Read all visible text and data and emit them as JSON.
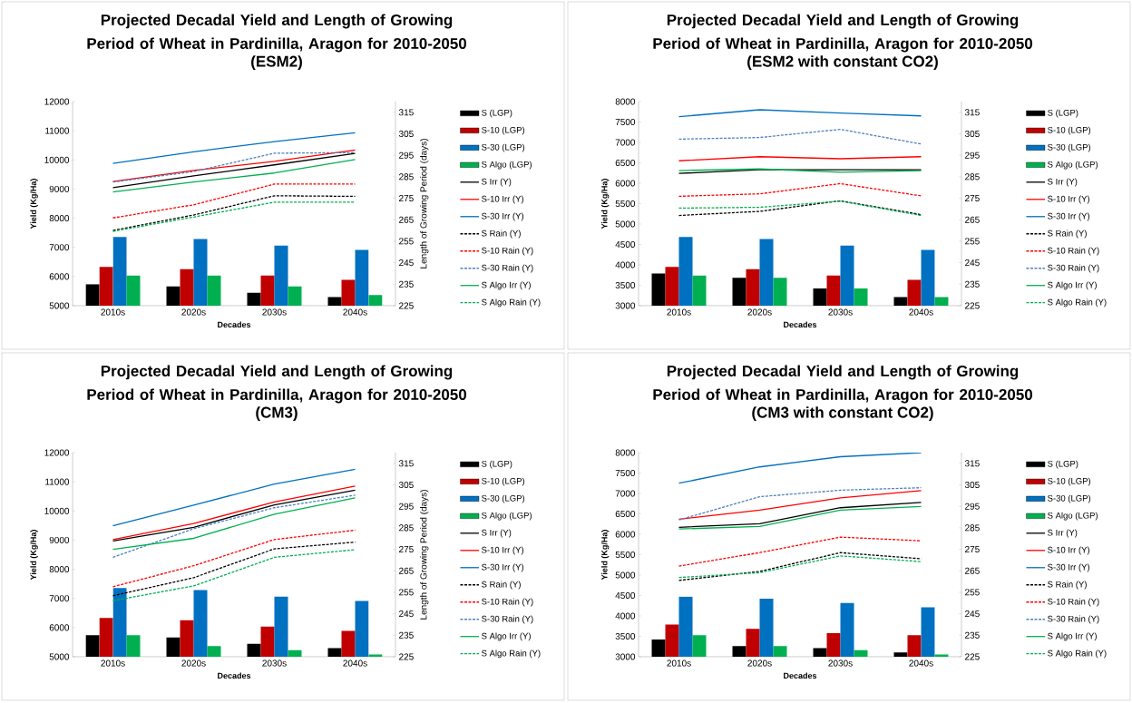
{
  "chart_data": [
    {
      "type": "bar",
      "title": "Projected Decadal Yield and Length of Growing Period of Wheat in Pardinilla, Aragon for 2010-2050",
      "subtitle": "(ESM2)",
      "xlabel": "Decades",
      "ylabel": "Yield (Kg/Ha)",
      "y2label": "Length of Growing Period  (days)",
      "categories": [
        "2010s",
        "2020s",
        "2030s",
        "2040s"
      ],
      "ylim": [
        5000,
        12000
      ],
      "yticks": [
        5000,
        6000,
        7000,
        8000,
        9000,
        10000,
        11000,
        12000
      ],
      "y2lim": [
        225,
        320
      ],
      "y2ticks": [
        225,
        235,
        245,
        255,
        265,
        275,
        285,
        295,
        305,
        315
      ],
      "legend": "right",
      "series": [
        {
          "name": "S (LGP)",
          "type": "bar",
          "axis": "y2",
          "color": "#000000",
          "values": [
            235,
            234,
            231,
            229
          ]
        },
        {
          "name": "S-10 (LGP)",
          "type": "bar",
          "axis": "y2",
          "color": "#c00000",
          "values": [
            243,
            242,
            239,
            237
          ]
        },
        {
          "name": "S-30 (LGP)",
          "type": "bar",
          "axis": "y2",
          "color": "#0070c0",
          "values": [
            257,
            256,
            253,
            251
          ]
        },
        {
          "name": "S Algo (LGP)",
          "type": "bar",
          "axis": "y2",
          "color": "#00b050",
          "values": [
            239,
            239,
            234,
            230
          ]
        },
        {
          "name": "S Irr (Y)",
          "type": "line",
          "color": "#000000",
          "line_style": "solid",
          "values": [
            9050,
            9450,
            9830,
            10220
          ]
        },
        {
          "name": "S-10 Irr (Y)",
          "type": "line",
          "color": "#ff0000",
          "line_style": "solid",
          "values": [
            9260,
            9640,
            9950,
            10340
          ]
        },
        {
          "name": "S-30 Irr (Y)",
          "type": "line",
          "color": "#0070c0",
          "line_style": "solid",
          "values": [
            9880,
            10280,
            10630,
            10930
          ]
        },
        {
          "name": "S Rain (Y)",
          "type": "line",
          "color": "#000000",
          "line_style": "dashed",
          "values": [
            7580,
            8110,
            8770,
            8750
          ]
        },
        {
          "name": "S-10 Rain (Y)",
          "type": "line",
          "color": "#ff0000",
          "line_style": "dashed",
          "values": [
            8010,
            8460,
            9170,
            9170
          ]
        },
        {
          "name": "S-30 Rain (Y)",
          "type": "line",
          "color": "#4f81bd",
          "line_style": "dashed",
          "values": [
            9240,
            9600,
            10230,
            10250
          ]
        },
        {
          "name": "S Algo Irr (Y)",
          "type": "line",
          "color": "#00b050",
          "line_style": "solid",
          "values": [
            8900,
            9240,
            9550,
            10010
          ]
        },
        {
          "name": "S Algo Rain (Y)",
          "type": "line",
          "color": "#00b050",
          "line_style": "dashed",
          "values": [
            7550,
            8040,
            8550,
            8550
          ]
        }
      ]
    },
    {
      "type": "bar",
      "title": "Projected Decadal Yield and Length of Growing Period of Wheat in Pardinilla, Aragon for 2010-2050",
      "subtitle": "(ESM2 with constant CO2)",
      "xlabel": "Decades",
      "ylabel": "Yield (Kg/Ha)",
      "categories": [
        "2010s",
        "2020s",
        "2030s",
        "2040s"
      ],
      "ylim": [
        3000,
        8000
      ],
      "yticks": [
        3000,
        3500,
        4000,
        4500,
        5000,
        5500,
        6000,
        6500,
        7000,
        7500,
        8000
      ],
      "y2lim": [
        225,
        320
      ],
      "y2ticks": [
        225,
        235,
        245,
        255,
        265,
        275,
        285,
        295,
        305,
        315
      ],
      "legend": "right",
      "series": [
        {
          "name": "S (LGP)",
          "type": "bar",
          "axis": "y2",
          "color": "#000000",
          "values": [
            240,
            238,
            233,
            229
          ]
        },
        {
          "name": "S-10 (LGP)",
          "type": "bar",
          "axis": "y2",
          "color": "#c00000",
          "values": [
            243,
            242,
            239,
            237
          ]
        },
        {
          "name": "S-30 (LGP)",
          "type": "bar",
          "axis": "y2",
          "color": "#0070c0",
          "values": [
            257,
            256,
            253,
            251
          ]
        },
        {
          "name": "S Algo (LGP)",
          "type": "bar",
          "axis": "y2",
          "color": "#00b050",
          "values": [
            239,
            238,
            233,
            229
          ]
        },
        {
          "name": "S Irr (Y)",
          "type": "line",
          "color": "#000000",
          "line_style": "solid",
          "values": [
            6240,
            6330,
            6330,
            6330
          ]
        },
        {
          "name": "S-10 Irr (Y)",
          "type": "line",
          "color": "#ff0000",
          "line_style": "solid",
          "values": [
            6550,
            6650,
            6600,
            6650
          ]
        },
        {
          "name": "S-30 Irr (Y)",
          "type": "line",
          "color": "#0070c0",
          "line_style": "solid",
          "values": [
            7630,
            7800,
            7720,
            7650
          ]
        },
        {
          "name": "S Rain (Y)",
          "type": "line",
          "color": "#000000",
          "line_style": "dashed",
          "values": [
            5210,
            5310,
            5570,
            5230
          ]
        },
        {
          "name": "S-10 Rain (Y)",
          "type": "line",
          "color": "#ff0000",
          "line_style": "dashed",
          "values": [
            5680,
            5740,
            5990,
            5690
          ]
        },
        {
          "name": "S-30 Rain (Y)",
          "type": "line",
          "color": "#4f81bd",
          "line_style": "dashed",
          "values": [
            7080,
            7120,
            7320,
            6960
          ]
        },
        {
          "name": "S Algo Irr (Y)",
          "type": "line",
          "color": "#00b050",
          "line_style": "solid",
          "values": [
            6310,
            6350,
            6270,
            6310
          ]
        },
        {
          "name": "S Algo Rain (Y)",
          "type": "line",
          "color": "#00b050",
          "line_style": "dashed",
          "values": [
            5390,
            5410,
            5560,
            5210
          ]
        }
      ]
    },
    {
      "type": "bar",
      "title": "Projected Decadal Yield and Length of Growing Period of Wheat in Pardinilla, Aragon for 2010-2050",
      "subtitle": "(CM3)",
      "xlabel": "Decades",
      "ylabel": "Yield (Kg/Ha)",
      "y2label": "Length of Growing Period  (days)",
      "categories": [
        "2010s",
        "2020s",
        "2030s",
        "2040s"
      ],
      "ylim": [
        5000,
        12000
      ],
      "yticks": [
        5000,
        6000,
        7000,
        8000,
        9000,
        10000,
        11000,
        12000
      ],
      "y2lim": [
        225,
        320
      ],
      "y2ticks": [
        225,
        235,
        245,
        255,
        265,
        275,
        285,
        295,
        305,
        315
      ],
      "legend": "right",
      "series": [
        {
          "name": "S (LGP)",
          "type": "bar",
          "axis": "y2",
          "color": "#000000",
          "values": [
            235,
            234,
            231,
            229
          ]
        },
        {
          "name": "S-10 (LGP)",
          "type": "bar",
          "axis": "y2",
          "color": "#c00000",
          "values": [
            243,
            242,
            239,
            237
          ]
        },
        {
          "name": "S-30 (LGP)",
          "type": "bar",
          "axis": "y2",
          "color": "#0070c0",
          "values": [
            257,
            256,
            253,
            251
          ]
        },
        {
          "name": "S Algo (LGP)",
          "type": "bar",
          "axis": "y2",
          "color": "#00b050",
          "values": [
            235,
            230,
            228,
            226
          ]
        },
        {
          "name": "S Irr (Y)",
          "type": "line",
          "color": "#000000",
          "line_style": "solid",
          "values": [
            8970,
            9440,
            10210,
            10710
          ]
        },
        {
          "name": "S-10 Irr (Y)",
          "type": "line",
          "color": "#ff0000",
          "line_style": "solid",
          "values": [
            9020,
            9570,
            10310,
            10850
          ]
        },
        {
          "name": "S-30 Irr (Y)",
          "type": "line",
          "color": "#0070c0",
          "line_style": "solid",
          "values": [
            9490,
            10200,
            10920,
            11430
          ]
        },
        {
          "name": "S Rain (Y)",
          "type": "line",
          "color": "#000000",
          "line_style": "dashed",
          "values": [
            7090,
            7710,
            8700,
            8930
          ]
        },
        {
          "name": "S-10 Rain (Y)",
          "type": "line",
          "color": "#ff0000",
          "line_style": "dashed",
          "values": [
            7400,
            8120,
            9020,
            9340
          ]
        },
        {
          "name": "S-30 Rain (Y)",
          "type": "line",
          "color": "#4f81bd",
          "line_style": "dashed",
          "values": [
            8410,
            9390,
            10110,
            10540
          ]
        },
        {
          "name": "S Algo Irr (Y)",
          "type": "line",
          "color": "#00b050",
          "line_style": "solid",
          "values": [
            8680,
            9060,
            9890,
            10450
          ]
        },
        {
          "name": "S Algo Rain (Y)",
          "type": "line",
          "color": "#00b050",
          "line_style": "dashed",
          "values": [
            6920,
            7430,
            8410,
            8670
          ]
        }
      ]
    },
    {
      "type": "bar",
      "title": "Projected Decadal Yield and Length of Growing Period of Wheat in Pardinilla, Aragon for 2010-2050",
      "subtitle": "(CM3 with constant CO2)",
      "xlabel": "Decades",
      "ylabel": "Yield (Kg/Ha)",
      "categories": [
        "2010s",
        "2020s",
        "2030s",
        "2040s"
      ],
      "ylim": [
        3000,
        8000
      ],
      "yticks": [
        3000,
        3500,
        4000,
        4500,
        5000,
        5500,
        6000,
        6500,
        7000,
        7500,
        8000
      ],
      "y2lim": [
        225,
        320
      ],
      "y2ticks": [
        225,
        235,
        245,
        255,
        265,
        275,
        285,
        295,
        305,
        315
      ],
      "legend": "right",
      "series": [
        {
          "name": "S (LGP)",
          "type": "bar",
          "axis": "y2",
          "color": "#000000",
          "values": [
            233,
            230,
            229,
            227
          ]
        },
        {
          "name": "S-10 (LGP)",
          "type": "bar",
          "axis": "y2",
          "color": "#c00000",
          "values": [
            240,
            238,
            236,
            235
          ]
        },
        {
          "name": "S-30 (LGP)",
          "type": "bar",
          "axis": "y2",
          "color": "#0070c0",
          "values": [
            253,
            252,
            250,
            248
          ]
        },
        {
          "name": "S Algo (LGP)",
          "type": "bar",
          "axis": "y2",
          "color": "#00b050",
          "values": [
            235,
            230,
            228,
            226
          ]
        },
        {
          "name": "S Irr (Y)",
          "type": "line",
          "color": "#000000",
          "line_style": "solid",
          "values": [
            6170,
            6260,
            6650,
            6780
          ]
        },
        {
          "name": "S-10 Irr (Y)",
          "type": "line",
          "color": "#ff0000",
          "line_style": "solid",
          "values": [
            6370,
            6590,
            6890,
            7070
          ]
        },
        {
          "name": "S-30 Irr (Y)",
          "type": "line",
          "color": "#0070c0",
          "line_style": "solid",
          "values": [
            7250,
            7650,
            7900,
            8000
          ]
        },
        {
          "name": "S Rain (Y)",
          "type": "line",
          "color": "#000000",
          "line_style": "dashed",
          "values": [
            4870,
            5090,
            5550,
            5400
          ]
        },
        {
          "name": "S-10 Rain (Y)",
          "type": "line",
          "color": "#ff0000",
          "line_style": "dashed",
          "values": [
            5220,
            5550,
            5930,
            5840
          ]
        },
        {
          "name": "S-30 Rain (Y)",
          "type": "line",
          "color": "#4f81bd",
          "line_style": "dashed",
          "values": [
            6350,
            6920,
            7080,
            7140
          ]
        },
        {
          "name": "S Algo Irr (Y)",
          "type": "line",
          "color": "#00b050",
          "line_style": "solid",
          "values": [
            6130,
            6190,
            6590,
            6680
          ]
        },
        {
          "name": "S Algo Rain (Y)",
          "type": "line",
          "color": "#00b050",
          "line_style": "dashed",
          "values": [
            4940,
            5060,
            5470,
            5330
          ]
        }
      ]
    }
  ]
}
